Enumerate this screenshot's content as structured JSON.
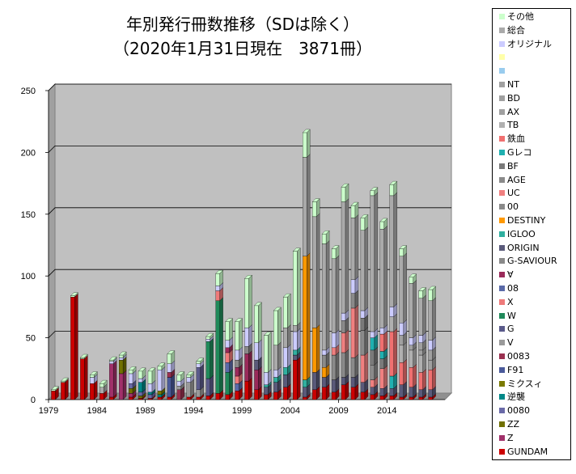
{
  "title_line1": "年別発行冊数推移（SDは除く）",
  "title_line2": "（2020年1月31日現在　3871冊）",
  "chart_data": {
    "type": "bar",
    "stacked": true,
    "grid": true,
    "legend_placement": "right",
    "ylim": [
      0,
      250
    ],
    "yticks": [
      "0",
      "50",
      "100",
      "150",
      "200",
      "250"
    ],
    "years": [
      1979,
      1980,
      1981,
      1982,
      1983,
      1984,
      1985,
      1986,
      1987,
      1988,
      1989,
      1990,
      1991,
      1992,
      1993,
      1994,
      1995,
      1996,
      1997,
      1998,
      1999,
      2000,
      2001,
      2002,
      2003,
      2004,
      2005,
      2006,
      2007,
      2008,
      2009,
      2010,
      2011,
      2012,
      2013,
      2014,
      2015,
      2016,
      2017,
      2018,
      2019
    ],
    "xtick_labels": [
      "1979",
      "1984",
      "1989",
      "1994",
      "1999",
      "2004",
      "2009",
      "2014"
    ],
    "totals": [
      8,
      15,
      84,
      34,
      20,
      13,
      32,
      36,
      24,
      23,
      23,
      27,
      37,
      20,
      20,
      31,
      51,
      102,
      63,
      63,
      98,
      76,
      52,
      72,
      83,
      120,
      216,
      160,
      134,
      122,
      172,
      157,
      147,
      169,
      144,
      174,
      122,
      99,
      88,
      89,
      0
    ],
    "series_order": [
      "GUNDAM",
      "Z",
      "ZZ",
      "0080",
      "逆襲",
      "ミクスィ",
      "F91",
      "0083",
      "V",
      "G",
      "W",
      "08",
      "X",
      "∀",
      "G-SAVIOUR",
      "ORIGIN",
      "IGLOO",
      "DESTINY",
      "00",
      "UC",
      "AGE",
      "BF",
      "Gレコ",
      "鉄血",
      "TB",
      "AX",
      "BD",
      "NT",
      "",
      "",
      "オリジナル",
      "総合",
      "その他"
    ],
    "colors": {
      "GUNDAM": "#cc0000",
      "Z": "#a0306a",
      "ZZ": "#707000",
      "0080": "#6a6aa8",
      "逆襲": "#008888",
      "ミクスィ": "#7a7a00",
      "F91": "#4a5a9a",
      "0083": "#9a3050",
      "V": "#9a9a9a",
      "G": "#5a5a8a",
      "W": "#208a5a",
      "08": "#5a6aa8",
      "X": "#ee7a7a",
      "∀": "#9a2a5a",
      "G-SAVIOUR": "#8a8a8a",
      "ORIGIN": "#5a5a7a",
      "IGLOO": "#30b0a0",
      "DESTINY": "#ff9900",
      "00": "#8a8a8a",
      "UC": "#f08080",
      "AGE": "#8a8a8a",
      "BF": "#7a7a7a",
      "Gレコ": "#20b0b0",
      "鉄血": "#f07070",
      "TB": "#b0b0b0",
      "AX": "#a0a0a0",
      "BD": "#a0a0a0",
      "NT": "#a0a0a0",
      "blank1": "#99ccee",
      "blank2": "#ffffaa",
      "オリジナル": "#ccccff",
      "総合": "#aaaaaa",
      "その他": "#ccffcc"
    },
    "stacks": [
      {
        "GUNDAM": 7,
        "その他": 1
      },
      {
        "GUNDAM": 14,
        "その他": 1
      },
      {
        "GUNDAM": 83,
        "その他": 1
      },
      {
        "GUNDAM": 33,
        "その他": 1
      },
      {
        "GUNDAM": 13,
        "オリジナル": 5,
        "その他": 2
      },
      {
        "GUNDAM": 5,
        "総合": 5,
        "その他": 3
      },
      {
        "GUNDAM": 2,
        "Z": 27,
        "オリジナル": 2,
        "その他": 1
      },
      {
        "Z": 21,
        "ZZ": 11,
        "オリジナル": 2,
        "その他": 2
      },
      {
        "GUNDAM": 2,
        "Z": 3,
        "ZZ": 4,
        "0080": 4,
        "オリジナル": 8,
        "その他": 3
      },
      {
        "GUNDAM": 1,
        "ZZ": 2,
        "0080": 3,
        "逆襲": 8,
        "オリジナル": 3,
        "その他": 6
      },
      {
        "GUNDAM": 1,
        "0080": 3,
        "逆襲": 2,
        "オリジナル": 7,
        "その他": 10
      },
      {
        "GUNDAM": 2,
        "逆襲": 2,
        "ミクスィ": 3,
        "オリジナル": 17,
        "その他": 3
      },
      {
        "GUNDAM": 2,
        "F91": 16,
        "0083": 4,
        "オリジナル": 7,
        "その他": 8
      },
      {
        "0083": 8,
        "V": 3,
        "オリジナル": 4,
        "その他": 5
      },
      {
        "GUNDAM": 2,
        "V": 12,
        "オリジナル": 4,
        "その他": 2
      },
      {
        "GUNDAM": 2,
        "V": 6,
        "G": 18,
        "オリジナル": 3,
        "その他": 2
      },
      {
        "GUNDAM": 3,
        "G": 14,
        "W": 30,
        "オリジナル": 2,
        "その他": 2
      },
      {
        "GUNDAM": 5,
        "W": 75,
        "X": 8,
        "オリジナル": 4,
        "その他": 10
      },
      {
        "GUNDAM": 4,
        "08": 8,
        "W": 18,
        "X": 8,
        "∀": 4,
        "オリジナル": 6,
        "その他": 15
      },
      {
        "GUNDAM": 7,
        "08": 6,
        "∀": 7,
        "X": 6,
        "G-SAVIOUR": 6,
        "オリジナル": 8,
        "その他": 23
      },
      {
        "GUNDAM": 15,
        "∀": 22,
        "G-SAVIOUR": 6,
        "オリジナル": 15,
        "その他": 40
      },
      {
        "GUNDAM": 8,
        "ORIGIN": 8,
        "∀": 16,
        "オリジナル": 14,
        "その他": 30
      },
      {
        "GUNDAM": 4,
        "ORIGIN": 6,
        "IGLOO": 2,
        "オリジナル": 10,
        "その他": 30
      },
      {
        "GUNDAM": 6,
        "ORIGIN": 8,
        "IGLOO": 4,
        "総合": 20,
        "オリジナル": 6,
        "その他": 28
      },
      {
        "GUNDAM": 10,
        "ORIGIN": 10,
        "IGLOO": 6,
        "総合": 16,
        "オリジナル": 16,
        "その他": 25
      },
      {
        "GUNDAM": 32,
        "ORIGIN": 4,
        "IGLOO": 4,
        "総合": 5,
        "オリジナル": 15,
        "その他": 60
      },
      {
        "GUNDAM": 2,
        "ORIGIN": 8,
        "IGLOO": 6,
        "DESTINY": 100,
        "総合": 80,
        "その他": 20
      },
      {
        "GUNDAM": 8,
        "ORIGIN": 14,
        "DESTINY": 36,
        "総合": 90,
        "その他": 12
      },
      {
        "GUNDAM": 10,
        "ORIGIN": 8,
        "DESTINY": 8,
        "00": 10,
        "総合": 86,
        "オリジナル": 4,
        "その他": 8
      },
      {
        "GUNDAM": 6,
        "ORIGIN": 10,
        "00": 20,
        "UC": 6,
        "総合": 60,
        "オリジナル": 12,
        "その他": 8
      },
      {
        "GUNDAM": 12,
        "ORIGIN": 6,
        "00": 20,
        "UC": 16,
        "AGE": 10,
        "総合": 90,
        "オリジナル": 6,
        "その他": 12
      },
      {
        "GUNDAM": 10,
        "ORIGIN": 8,
        "00": 16,
        "UC": 40,
        "AGE": 12,
        "総合": 50,
        "オリジナル": 11,
        "その他": 10
      },
      {
        "GUNDAM": 6,
        "ORIGIN": 8,
        "AGE": 20,
        "UC": 22,
        "BF": 10,
        "総合": 65,
        "オリジナル": 6,
        "その他": 10
      },
      {
        "GUNDAM": 4,
        "ORIGIN": 6,
        "AGE": 12,
        "BF": 12,
        "Gレコ": 10,
        "UC": 6,
        "総合": 110,
        "オリジナル": 5,
        "その他": 4
      },
      {
        "GUNDAM": 3,
        "ORIGIN": 6,
        "BF": 8,
        "Gレコ": 6,
        "UC": 16,
        "鉄血": 14,
        "総合": 80,
        "オリジナル": 5,
        "その他": 6
      },
      {
        "GUNDAM": 3,
        "ORIGIN": 6,
        "Gレコ": 10,
        "鉄血": 36,
        "TB": 12,
        "総合": 90,
        "オリジナル": 8,
        "その他": 9
      },
      {
        "GUNDAM": 2,
        "ORIGIN": 10,
        "鉄血": 18,
        "TB": 14,
        "AX": 8,
        "総合": 54,
        "オリジナル": 10,
        "その他": 6
      },
      {
        "GUNDAM": 2,
        "ORIGIN": 8,
        "鉄血": 16,
        "TB": 14,
        "NT": 4,
        "総合": 44,
        "オリジナル": 6,
        "その他": 5
      },
      {
        "GUNDAM": 2,
        "ORIGIN": 6,
        "鉄血": 14,
        "TB": 14,
        "NT": 6,
        "BD": 4,
        "総合": 30,
        "オリジナル": 6,
        "その他": 6
      },
      {
        "GUNDAM": 2,
        "ORIGIN": 6,
        "鉄血": 16,
        "NT": 8,
        "BD": 8,
        "総合": 32,
        "オリジナル": 8,
        "その他": 9
      },
      {}
    ]
  },
  "legend": [
    {
      "key": "その他",
      "label": "その他",
      "color": "#ccffcc"
    },
    {
      "key": "総合",
      "label": "総合",
      "color": "#aaaaaa"
    },
    {
      "key": "オリジナル",
      "label": "オリジナル",
      "color": "#ccccff"
    },
    {
      "key": "blank2",
      "label": "",
      "color": "#ffffaa"
    },
    {
      "key": "blank1",
      "label": "",
      "color": "#99ccee"
    },
    {
      "key": "NT",
      "label": "NT",
      "color": "#a0a0a0"
    },
    {
      "key": "BD",
      "label": "BD",
      "color": "#a0a0a0"
    },
    {
      "key": "AX",
      "label": "AX",
      "color": "#a0a0a0"
    },
    {
      "key": "TB",
      "label": "TB",
      "color": "#b0b0b0"
    },
    {
      "key": "鉄血",
      "label": "鉄血",
      "color": "#f07070"
    },
    {
      "key": "Gレコ",
      "label": "Gレコ",
      "color": "#20b0b0"
    },
    {
      "key": "BF",
      "label": "BF",
      "color": "#7a7a7a"
    },
    {
      "key": "AGE",
      "label": "AGE",
      "color": "#8a8a8a"
    },
    {
      "key": "UC",
      "label": "UC",
      "color": "#f08080"
    },
    {
      "key": "00",
      "label": "00",
      "color": "#8a8a8a"
    },
    {
      "key": "DESTINY",
      "label": "DESTINY",
      "color": "#ff9900"
    },
    {
      "key": "IGLOO",
      "label": "IGLOO",
      "color": "#30b0a0"
    },
    {
      "key": "ORIGIN",
      "label": "ORIGIN",
      "color": "#5a5a7a"
    },
    {
      "key": "G-SAVIOUR",
      "label": "G-SAVIOUR",
      "color": "#8a8a8a"
    },
    {
      "key": "∀",
      "label": "∀",
      "color": "#9a2a5a"
    },
    {
      "key": "08",
      "label": "08",
      "color": "#5a6aa8"
    },
    {
      "key": "X",
      "label": "X",
      "color": "#ee7a7a"
    },
    {
      "key": "W",
      "label": "W",
      "color": "#208a5a"
    },
    {
      "key": "G",
      "label": "G",
      "color": "#5a5a8a"
    },
    {
      "key": "V",
      "label": "V",
      "color": "#9a9a9a"
    },
    {
      "key": "0083",
      "label": "0083",
      "color": "#9a3050"
    },
    {
      "key": "F91",
      "label": "F91",
      "color": "#4a5a9a"
    },
    {
      "key": "ミクスィ",
      "label": "ミクスィ",
      "color": "#7a7a00"
    },
    {
      "key": "逆襲",
      "label": "逆襲",
      "color": "#008888"
    },
    {
      "key": "0080",
      "label": "0080",
      "color": "#6a6aa8"
    },
    {
      "key": "ZZ",
      "label": "ZZ",
      "color": "#707000"
    },
    {
      "key": "Z",
      "label": "Z",
      "color": "#a0306a"
    },
    {
      "key": "GUNDAM",
      "label": "GUNDAM",
      "color": "#cc0000"
    }
  ]
}
